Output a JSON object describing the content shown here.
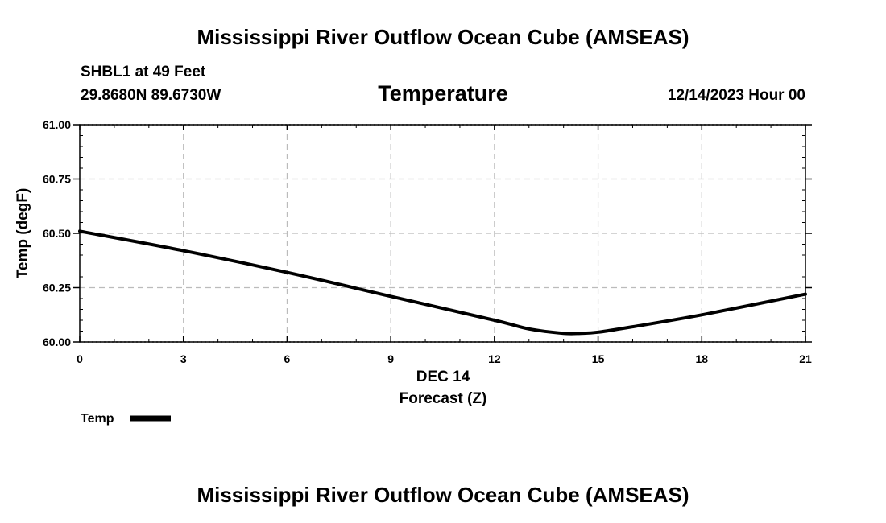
{
  "header": {
    "title": "Mississippi River Outflow Ocean Cube (AMSEAS)",
    "station": "SHBL1 at 49 Feet",
    "coords": "29.8680N  89.6730W",
    "date": "12/14/2023 Hour 00"
  },
  "footer": {
    "title": "Mississippi River Outflow Ocean Cube (AMSEAS)"
  },
  "colors": {
    "line": "#000000",
    "grid": "#bbbbbb"
  },
  "chart_data": {
    "type": "line",
    "title": "Temperature",
    "xlabel": "Forecast (Z)",
    "xlabel_date": "DEC 14",
    "ylabel": "Temp (degF)",
    "xlim": [
      0,
      21
    ],
    "ylim": [
      60.0,
      61.0
    ],
    "x_ticks": [
      0,
      3,
      6,
      9,
      12,
      15,
      18,
      21
    ],
    "x_tick_labels": [
      "0",
      "3",
      "6",
      "9",
      "12",
      "15",
      "18",
      "21"
    ],
    "y_ticks": [
      60.0,
      60.25,
      60.5,
      60.75,
      61.0
    ],
    "y_tick_labels": [
      "60.00",
      "60.25",
      "60.50",
      "60.75",
      "61.00"
    ],
    "grid": true,
    "legend": {
      "position": "bottom-left",
      "label": "Temp"
    },
    "series": [
      {
        "name": "Temp",
        "x": [
          0,
          3,
          6,
          9,
          12,
          13,
          14,
          14.5,
          15,
          16,
          18,
          21
        ],
        "values": [
          60.51,
          60.42,
          60.32,
          60.21,
          60.1,
          60.06,
          60.04,
          60.04,
          60.045,
          60.07,
          60.125,
          60.22
        ]
      }
    ]
  }
}
